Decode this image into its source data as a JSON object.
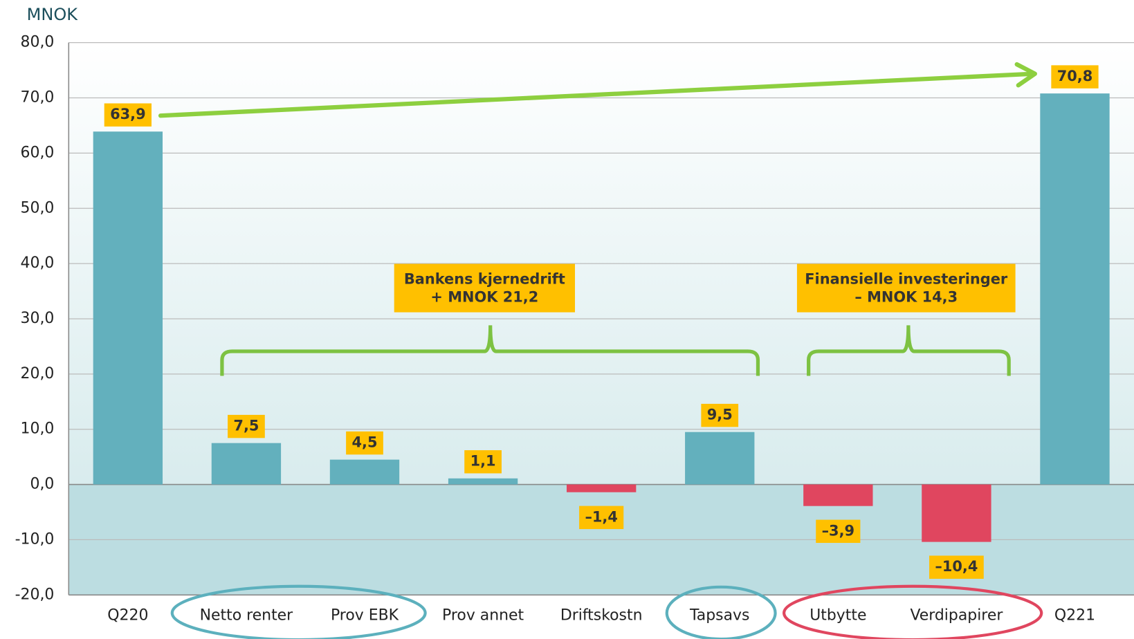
{
  "chart_data": {
    "type": "bar",
    "y_label": "MNOK",
    "categories": [
      "Q220",
      "Netto renter",
      "Prov EBK",
      "Prov annet",
      "Driftskostn",
      "Tapsavs",
      "Utbytte",
      "Verdipapirer",
      "Q221"
    ],
    "values": [
      63.9,
      7.5,
      4.5,
      1.1,
      -1.4,
      9.5,
      -3.9,
      -10.4,
      70.8
    ],
    "value_labels": [
      "63,9",
      "7,5",
      "4,5",
      "1,1",
      "–1,4",
      "9,5",
      "–3,9",
      "–10,4",
      "70,8"
    ],
    "colors": [
      "#63b0bd",
      "#63b0bd",
      "#63b0bd",
      "#63b0bd",
      "#e0465f",
      "#63b0bd",
      "#e0465f",
      "#e0465f",
      "#63b0bd"
    ],
    "ylim": [
      -20,
      80
    ],
    "yticks": [
      {
        "value": -20,
        "label": "-20,0"
      },
      {
        "value": -10,
        "label": "-10,0"
      },
      {
        "value": 0,
        "label": "0,0"
      },
      {
        "value": 10,
        "label": "10,0"
      },
      {
        "value": 20,
        "label": "20,0"
      },
      {
        "value": 30,
        "label": "30,0"
      },
      {
        "value": 40,
        "label": "40,0"
      },
      {
        "value": 50,
        "label": "50,0"
      },
      {
        "value": 60,
        "label": "60,0"
      },
      {
        "value": 70,
        "label": "70,0"
      },
      {
        "value": 80,
        "label": "80,0"
      }
    ],
    "grid": true,
    "annotations": [
      [
        "Bankens kjernedrift",
        "+ MNOK 21,2"
      ],
      [
        "Finansielle investeringer",
        "– MNOK 14,3"
      ]
    ]
  }
}
